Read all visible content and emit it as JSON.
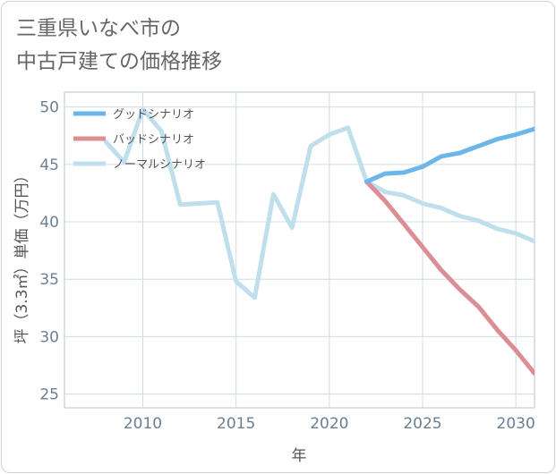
{
  "title_lines": [
    "三重県いなべ市の",
    "中古戸建ての価格推移"
  ],
  "chart_data": {
    "type": "line",
    "title": "三重県いなべ市の中古戸建ての価格推移",
    "xlabel": "年",
    "ylabel": "坪（3.3㎡）単価（万円）",
    "xlim": [
      2005.8,
      2031
    ],
    "ylim": [
      23.8,
      51.3
    ],
    "xticks": [
      2010,
      2015,
      2020,
      2025,
      2030
    ],
    "yticks": [
      25,
      30,
      35,
      40,
      45,
      50
    ],
    "grid": true,
    "legend_position": "top-left",
    "series": [
      {
        "name": "グッドシナリオ",
        "color": "#6cb6ea",
        "x": [
          2022,
          2023,
          2024,
          2025,
          2026,
          2027,
          2028,
          2029,
          2030,
          2031
        ],
        "y": [
          43.5,
          44.2,
          44.3,
          44.8,
          45.7,
          46.0,
          46.6,
          47.2,
          47.6,
          48.1
        ]
      },
      {
        "name": "バッドシナリオ",
        "color": "#dc8e95",
        "x": [
          2022,
          2023,
          2024,
          2025,
          2026,
          2027,
          2028,
          2029,
          2030,
          2031
        ],
        "y": [
          43.5,
          41.8,
          39.8,
          37.8,
          35.8,
          34.1,
          32.6,
          30.6,
          28.8,
          26.8
        ]
      },
      {
        "name": "ノーマルシナリオ",
        "color": "#c0dfed",
        "x": [
          2008,
          2009,
          2010,
          2011,
          2012,
          2013,
          2014,
          2015,
          2016,
          2017,
          2018,
          2019,
          2020,
          2021,
          2022,
          2023,
          2024,
          2025,
          2026,
          2027,
          2028,
          2029,
          2030,
          2031
        ],
        "y": [
          47.0,
          45.2,
          49.8,
          47.9,
          41.5,
          41.6,
          41.7,
          34.8,
          33.4,
          42.4,
          39.5,
          46.6,
          47.6,
          48.2,
          43.5,
          42.6,
          42.3,
          41.6,
          41.2,
          40.5,
          40.1,
          39.4,
          39.0,
          38.3
        ]
      }
    ]
  }
}
